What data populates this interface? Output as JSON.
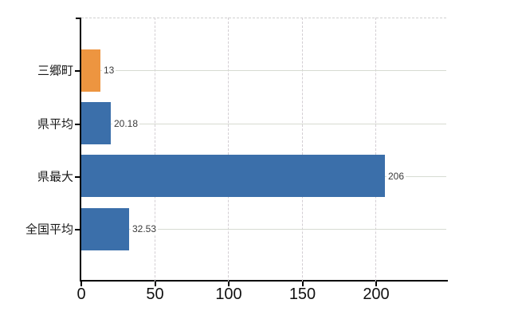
{
  "chart_data": {
    "type": "bar",
    "orientation": "horizontal",
    "title": "",
    "xlabel": "",
    "ylabel": "",
    "legend": false,
    "categories": [
      "三郷町",
      "県平均",
      "県最大",
      "全国平均"
    ],
    "values": [
      13,
      20.18,
      206,
      32.53
    ],
    "value_labels": [
      "13",
      "20.18",
      "206",
      "32.53"
    ],
    "bar_colors": [
      "#ED9540",
      "#3B6FAA",
      "#3B6FAA",
      "#3B6FAA"
    ],
    "x_ticks": [
      0,
      50,
      100,
      150,
      200
    ],
    "x_tick_labels": [
      "0",
      "50",
      "100",
      "150",
      "200"
    ],
    "xlim": [
      0,
      247.5
    ],
    "grid": {
      "horizontal": "solid light gray line at each category center",
      "vertical": "dashed light gray line at each labeled x tick",
      "top_border": "dashed light gray"
    }
  },
  "colors": {
    "background": "#ffffff",
    "axis": "#000000",
    "bar_blue": "#3B6FAA",
    "bar_orange": "#ED9540",
    "grid_horizontal": "#d7dbd2",
    "grid_vertical": "#d3ced3",
    "value_label_text": "#3a3a3a",
    "tick_label_text": "#111111"
  }
}
